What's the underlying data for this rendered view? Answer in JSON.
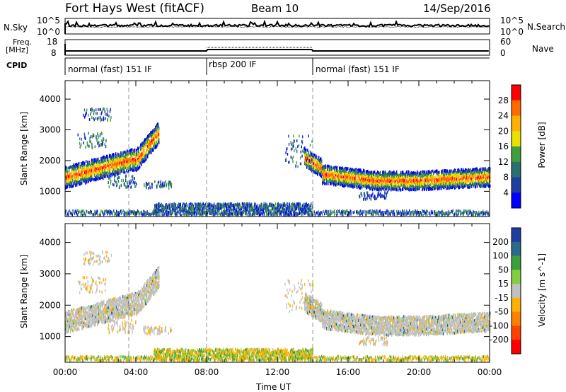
{
  "header": {
    "station": "Fort Hays West (fitACF)",
    "beam": "Beam 10",
    "date": "14/Sep/2016"
  },
  "noise_panel": {
    "left_label": "N.Sky",
    "right_label": "N.Search",
    "left_ticks": [
      "10^5",
      "10^0"
    ],
    "right_ticks": [
      "10^5",
      "10^0"
    ]
  },
  "freq_panel": {
    "left_label_1": "Freq.",
    "left_label_2": "[MHz]",
    "right_label": "Nave",
    "left_ticks": [
      "18",
      "8"
    ],
    "right_ticks": [
      "60",
      "0"
    ]
  },
  "cpid": {
    "label": "CPID",
    "segments": [
      {
        "name": "normal (fast) 151 IF",
        "start_hour": 0,
        "end_hour": 8
      },
      {
        "name": "rbsp 200 IF",
        "start_hour": 8,
        "end_hour": 14
      },
      {
        "name": "normal (fast) 151 IF",
        "start_hour": 14,
        "end_hour": 24
      }
    ]
  },
  "chart_data": [
    {
      "type": "heatmap",
      "quantity": "power",
      "ylabel": "Slant Range [km]",
      "xlim": [
        0,
        24
      ],
      "ylim": [
        180,
        4600
      ],
      "yticks": [
        1000,
        2000,
        3000,
        4000
      ],
      "colorbar": {
        "label": "Power [dB]",
        "ticks": [
          "28",
          "24",
          "20",
          "16",
          "12",
          "8",
          "4"
        ],
        "colors": [
          "#ff0000",
          "#ff6a00",
          "#ffb000",
          "#e8e000",
          "#3f9f3f",
          "#2a7070",
          "#1f3f9f",
          "#0000ff"
        ]
      }
    },
    {
      "type": "heatmap",
      "quantity": "velocity",
      "ylabel": "Slant Range [km]",
      "xlabel": "Time UT",
      "xlim": [
        0,
        24
      ],
      "ylim": [
        180,
        4600
      ],
      "yticks": [
        1000,
        2000,
        3000,
        4000
      ],
      "xticks": [
        "00:00",
        "04:00",
        "08:00",
        "12:00",
        "16:00",
        "20:00",
        "00:00"
      ],
      "colorbar": {
        "label": "Velocity [m s^-1]",
        "ticks": [
          "200",
          "100",
          "50",
          "15",
          "-15",
          "-50",
          "-100",
          "-200"
        ],
        "colors": [
          "#1f3fa0",
          "#2a6a8a",
          "#3a9f3a",
          "#7fcf3f",
          "#c0c0c0",
          "#ffb000",
          "#ff8000",
          "#ff4000",
          "#ff0000"
        ]
      }
    }
  ]
}
